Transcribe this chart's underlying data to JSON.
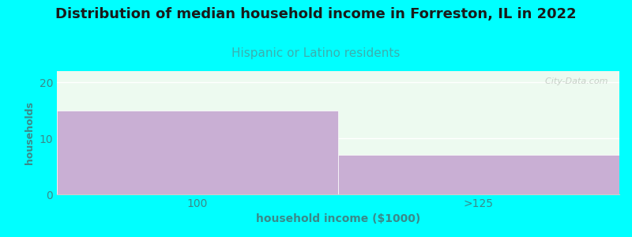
{
  "title": "Distribution of median household income in Forreston, IL in 2022",
  "subtitle": "Hispanic or Latino residents",
  "xlabel": "household income ($1000)",
  "ylabel": "households",
  "categories": [
    "100",
    ">125"
  ],
  "values": [
    15,
    7
  ],
  "bar_color": "#c9afd4",
  "bar_edgecolor": "#c9afd4",
  "background_color": "#00ffff",
  "plot_bg_color": "#edfaf0",
  "ylim": [
    0,
    22
  ],
  "yticks": [
    0,
    10,
    20
  ],
  "grid_color": "#ffffff",
  "title_fontsize": 13,
  "title_color": "#1a1a1a",
  "subtitle_fontsize": 11,
  "subtitle_color": "#3ab0b0",
  "axis_label_color": "#3a8a8a",
  "tick_color": "#3a8a8a",
  "watermark": "  City-Data.com",
  "watermark_color": "#c0c8c0"
}
